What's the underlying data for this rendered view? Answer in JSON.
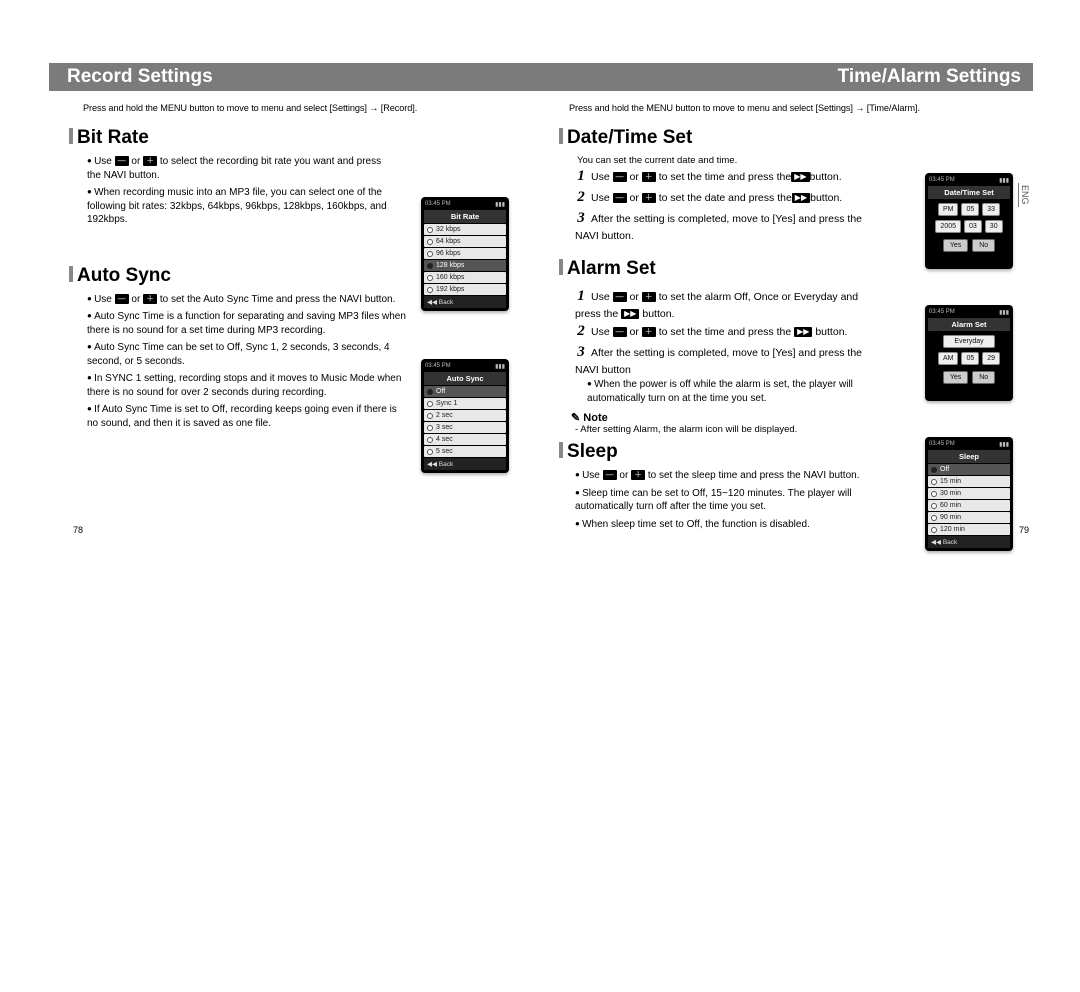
{
  "titles": {
    "left": "Record Settings",
    "right": "Time/Alarm Settings"
  },
  "eng_tab": "ENG",
  "page_left": "78",
  "page_right": "79",
  "left": {
    "intro": "Press and hold the MENU button to move to menu and select [Settings] → [Record].",
    "sec1": {
      "head": "Bit Rate",
      "b1a": "Use ",
      "b1b": " or ",
      "b1c": " to select the recording bit rate you want and press the NAVI button.",
      "b2": "When recording music into an MP3 file, you can select one of the following bit rates: 32kbps, 64kbps, 96kbps, 128kbps, 160kbps, and 192kbps."
    },
    "sec2": {
      "head": "Auto Sync",
      "b1a": "Use ",
      "b1b": " or ",
      "b1c": " to set the Auto Sync Time and press the NAVI button.",
      "b2": "Auto Sync Time is a function for separating and saving MP3 files when there is no sound for a set time during MP3 recording.",
      "b3": "Auto Sync Time can be set to Off, Sync 1, 2 seconds, 3 seconds, 4 second, or 5 seconds.",
      "b4": "In SYNC 1 setting, recording stops and it moves to Music Mode when there is no sound for over 2 seconds during recording.",
      "b5": "If Auto Sync Time is set to Off, recording keeps going even if there is no sound, and then it is saved as one file."
    },
    "screen1": {
      "hdr": "Bit Rate",
      "opts": [
        "32 kbps",
        "64 kbps",
        "96 kbps",
        "128 kbps",
        "160 kbps",
        "192 kbps"
      ],
      "sel": 3,
      "ftr": "◀◀  Back"
    },
    "screen2": {
      "hdr": "Auto Sync",
      "opts": [
        "Off",
        "Sync 1",
        "2 sec",
        "3 sec",
        "4 sec",
        "5 sec"
      ],
      "sel": 0,
      "ftr": "◀◀  Back"
    }
  },
  "right": {
    "intro": "Press and hold the MENU button to move to menu and select [Settings] → [Time/Alarm].",
    "sec1": {
      "head": "Date/Time Set",
      "sub": "You can set the current date and time.",
      "s1a": "Use ",
      "s1b": " or ",
      "s1c": " to set the time and press the",
      "s1d": "button.",
      "s2a": "Use ",
      "s2b": " or ",
      "s2c": " to set the date and press the",
      "s2d": "button.",
      "s3": "After the setting is completed, move to [Yes] and press the NAVI button."
    },
    "sec2": {
      "head": "Alarm Set",
      "s1a": "Use ",
      "s1b": " or ",
      "s1c": " to set the alarm Off, Once or Everyday and press the ",
      "s1d": " button.",
      "s2a": "Use ",
      "s2b": " or ",
      "s2c": " to set the time and press the ",
      "s2d": " button.",
      "s3": "After the setting is completed, move to [Yes] and press the NAVI button",
      "b1": "When the power is off while the alarm is set, the player will automatically turn on at the time you set.",
      "note_head": "Note",
      "note": "- After setting Alarm, the alarm icon will be displayed."
    },
    "sec3": {
      "head": "Sleep",
      "b1a": "Use ",
      "b1b": " or ",
      "b1c": " to set the sleep time and press the NAVI button.",
      "b2": "Sleep time can be set to Off, 15~120 minutes. The player will automatically turn off after the time you set.",
      "b3": "When sleep time set to Off, the function is disabled."
    },
    "screenA": {
      "hdr": "Date/Time Set",
      "r1": [
        "PM",
        "05",
        "33"
      ],
      "r2": [
        "2005",
        "03",
        "30"
      ],
      "yes": "Yes",
      "no": "No"
    },
    "screenB": {
      "hdr": "Alarm Set",
      "mode": "Everyday",
      "r": [
        "AM",
        "05",
        "29"
      ],
      "yes": "Yes",
      "no": "No"
    },
    "screenC": {
      "hdr": "Sleep",
      "opts": [
        "Off",
        "15 min",
        "30 min",
        "60 min",
        "90 min",
        "120 min"
      ],
      "sel": 0,
      "ftr": "◀◀  Back"
    }
  },
  "glyph": {
    "minus": "—",
    "plus": "＋",
    "ff": "▶▶"
  }
}
